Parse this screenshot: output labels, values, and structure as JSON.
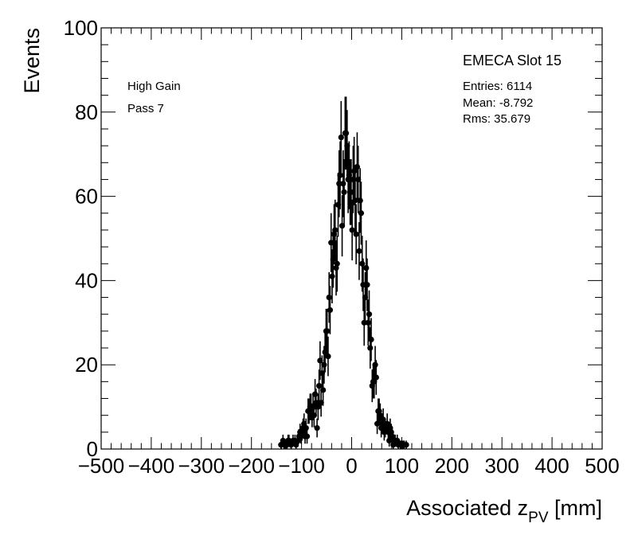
{
  "chart_data": {
    "type": "scatter",
    "xlabel_main": "Associated z",
    "xlabel_sub": "PV",
    "xlabel_unit": " [mm]",
    "ylabel": "Events",
    "xlim": [
      -500,
      500
    ],
    "ylim": [
      0,
      100
    ],
    "xticks": [
      -500,
      -400,
      -300,
      -200,
      -100,
      0,
      100,
      200,
      300,
      400,
      500
    ],
    "xtick_labels": [
      "−500",
      "−400",
      "−300",
      "−200",
      "−100",
      "0",
      "100",
      "200",
      "300",
      "400",
      "500"
    ],
    "yticks": [
      0,
      20,
      40,
      60,
      80,
      100
    ],
    "ytick_labels": [
      "0",
      "20",
      "40",
      "60",
      "80",
      "100"
    ],
    "legend": {
      "title": "EMECA Slot 15",
      "entries_label": "Entries: 6114",
      "mean_label": "Mean: -8.792",
      "rms_label": "Rms: 35.679"
    },
    "annotations": {
      "gain": "High Gain",
      "pass": "Pass 7"
    },
    "stats": {
      "entries": 6114,
      "mean": -8.792,
      "rms": 35.679,
      "bin_width_mm": 2,
      "x_first": -143,
      "x_last": 113
    },
    "profile_x": [
      -140,
      -130,
      -120,
      -110,
      -100,
      -90,
      -80,
      -70,
      -60,
      -50,
      -40,
      -30,
      -20,
      -10,
      0,
      10,
      20,
      30,
      40,
      50,
      60,
      70,
      80,
      90,
      100,
      110,
      115
    ],
    "profile_y": [
      0.5,
      1.2,
      1.6,
      2.2,
      3.2,
      5.0,
      8.0,
      12.5,
      19.0,
      27.0,
      39.0,
      52.0,
      64.0,
      71.0,
      67.0,
      58.0,
      46.0,
      33.0,
      22.0,
      13.5,
      7.5,
      4.0,
      2.0,
      1.0,
      0.6,
      0.3,
      0.2
    ]
  }
}
